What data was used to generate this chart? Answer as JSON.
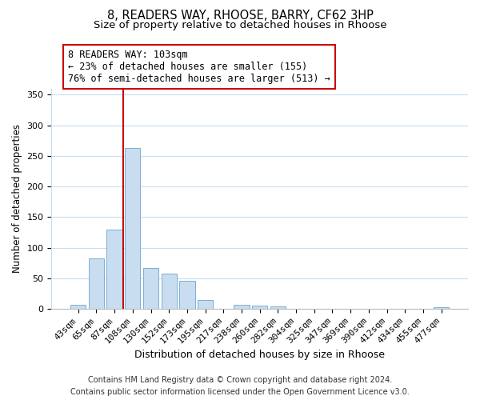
{
  "title": "8, READERS WAY, RHOOSE, BARRY, CF62 3HP",
  "subtitle": "Size of property relative to detached houses in Rhoose",
  "xlabel": "Distribution of detached houses by size in Rhoose",
  "ylabel": "Number of detached properties",
  "bar_labels": [
    "43sqm",
    "65sqm",
    "87sqm",
    "108sqm",
    "130sqm",
    "152sqm",
    "173sqm",
    "195sqm",
    "217sqm",
    "238sqm",
    "260sqm",
    "282sqm",
    "304sqm",
    "325sqm",
    "347sqm",
    "369sqm",
    "390sqm",
    "412sqm",
    "434sqm",
    "455sqm",
    "477sqm"
  ],
  "bar_values": [
    7,
    82,
    129,
    263,
    67,
    57,
    46,
    15,
    0,
    7,
    5,
    4,
    0,
    0,
    0,
    0,
    0,
    0,
    0,
    0,
    2
  ],
  "bar_color": "#c8ddf0",
  "bar_edge_color": "#7bafd4",
  "vline_x": 2.5,
  "vline_color": "#cc0000",
  "annotation_text": "8 READERS WAY: 103sqm\n← 23% of detached houses are smaller (155)\n76% of semi-detached houses are larger (513) →",
  "annotation_box_color": "#ffffff",
  "annotation_box_edge": "#cc0000",
  "ylim": [
    0,
    360
  ],
  "yticks": [
    0,
    50,
    100,
    150,
    200,
    250,
    300,
    350
  ],
  "footer": "Contains HM Land Registry data © Crown copyright and database right 2024.\nContains public sector information licensed under the Open Government Licence v3.0.",
  "title_fontsize": 10.5,
  "subtitle_fontsize": 9.5,
  "xlabel_fontsize": 9,
  "ylabel_fontsize": 8.5,
  "tick_fontsize": 8,
  "annotation_fontsize": 8.5,
  "footer_fontsize": 7
}
